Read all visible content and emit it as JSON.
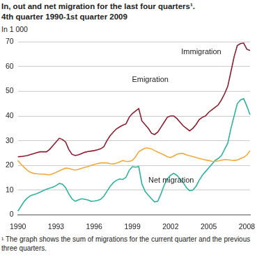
{
  "chart_data": {
    "type": "line",
    "title": [
      "In, out and net migration for the last four quarters¹.",
      "4th quarter 1990-1st quarter 2009"
    ],
    "y_label": "In 1 000",
    "footnote": "¹ The graph shows the sum of migrations for the current quarter and the previous three quarters.",
    "categories": [
      "1990",
      null,
      null,
      null,
      null,
      null,
      null,
      null,
      null,
      null,
      null,
      null,
      "1993",
      null,
      null,
      null,
      null,
      null,
      null,
      null,
      null,
      null,
      null,
      null,
      "1996",
      null,
      null,
      null,
      null,
      null,
      null,
      null,
      null,
      null,
      null,
      null,
      "1999",
      null,
      null,
      null,
      null,
      null,
      null,
      null,
      null,
      null,
      null,
      null,
      "2002",
      null,
      null,
      null,
      null,
      null,
      null,
      null,
      null,
      null,
      null,
      null,
      "2005",
      null,
      null,
      null,
      null,
      null,
      null,
      null,
      null,
      null,
      null,
      null,
      "2008",
      null
    ],
    "series": [
      {
        "name": "Immigration",
        "color": "#8c1c2c",
        "values": [
          23.5,
          23.6,
          23.8,
          24,
          24.4,
          24.8,
          25.2,
          25.5,
          25.5,
          25.5,
          26.5,
          28,
          29.5,
          31,
          30.5,
          29.5,
          26.5,
          24.5,
          24,
          24.3,
          24.8,
          25.3,
          25.6,
          25.8,
          26,
          26.3,
          26.7,
          27.5,
          30,
          32,
          33.5,
          34.8,
          35.6,
          36.3,
          36.8,
          39.5,
          41,
          42,
          43,
          38,
          36.5,
          35,
          33,
          32.5,
          33.5,
          35.5,
          37.5,
          39.5,
          40,
          40,
          39,
          37.5,
          36,
          35,
          34,
          35,
          36.5,
          38.5,
          39.5,
          40,
          41.5,
          42.5,
          43.5,
          44.5,
          46.5,
          49,
          52,
          58,
          64,
          68.5,
          69.3,
          69.5,
          67,
          66.5
        ]
      },
      {
        "name": "Emigration",
        "color": "#f2a93b",
        "values": [
          22,
          20.5,
          19.2,
          18,
          17.2,
          16.8,
          16.6,
          16.5,
          16.5,
          16.3,
          16.2,
          16.6,
          17.2,
          17.8,
          18.4,
          18.9,
          18.8,
          18.4,
          18.1,
          18.4,
          18.8,
          19.2,
          19.5,
          20,
          20.4,
          20.7,
          21,
          21,
          21,
          20.7,
          20.6,
          20.9,
          21.4,
          22,
          21.6,
          21.6,
          22,
          23.5,
          25.5,
          26.3,
          27,
          27,
          26.7,
          26,
          25.4,
          24.8,
          24.2,
          23.5,
          23.2,
          23.8,
          24.5,
          24.8,
          24.8,
          24.3,
          23.9,
          23.6,
          23.2,
          22.8,
          22.5,
          22.2,
          22,
          21.7,
          21.6,
          21.8,
          22.1,
          22.4,
          22.3,
          22.1,
          22,
          22.2,
          22.8,
          23.3,
          24.2,
          26
        ]
      },
      {
        "name": "Net migration",
        "color": "#2bb3a0",
        "values": [
          1.5,
          3.5,
          5.5,
          6.8,
          7.8,
          8.2,
          8.6,
          9.2,
          9.8,
          10.4,
          10.8,
          11.2,
          11.8,
          12.7,
          12.4,
          11,
          8.5,
          6.5,
          5.5,
          6,
          6.5,
          6.3,
          6,
          5.5,
          5.6,
          5.8,
          6.3,
          7.5,
          9.5,
          11.5,
          13,
          14,
          14.5,
          14.3,
          15.2,
          18,
          19.5,
          19.3,
          19.5,
          12.5,
          9.5,
          8,
          6.5,
          5.2,
          5.5,
          8.5,
          12,
          14.5,
          16,
          16.8,
          16,
          14.5,
          13,
          11,
          9.8,
          10,
          11.5,
          14,
          16,
          17.5,
          19,
          20.5,
          22,
          22.8,
          24,
          26.5,
          29,
          35,
          40,
          45,
          46.5,
          47,
          44,
          40.5
        ]
      }
    ],
    "ylim": [
      0,
      70
    ],
    "yticks": [
      0,
      10,
      20,
      30,
      40,
      50,
      60,
      70
    ],
    "grid": true
  }
}
